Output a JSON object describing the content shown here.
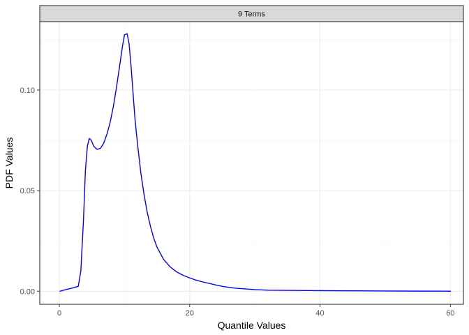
{
  "chart_data": {
    "type": "line",
    "panel_title": "9 Terms",
    "xlabel": "Quantile Values",
    "ylabel": "PDF Values",
    "xlim": [
      -3,
      62
    ],
    "ylim": [
      -0.0065,
      0.134
    ],
    "x_ticks": [
      0,
      20,
      40,
      60
    ],
    "x_tick_labels": [
      "0",
      "20",
      "40",
      "60"
    ],
    "y_ticks": [
      0.0,
      0.05,
      0.1
    ],
    "y_tick_labels": [
      "0.00",
      "0.05",
      "0.10"
    ],
    "grid": true,
    "legend": "none",
    "series": [
      {
        "color": "#0000ff",
        "x": [
          0.1,
          1.0,
          2.0,
          2.9,
          3.3,
          3.7,
          4.0,
          4.3,
          4.6,
          4.9,
          5.3,
          5.8,
          6.3,
          6.8,
          7.3,
          7.8,
          8.3,
          8.8,
          9.3,
          9.7,
          10.0,
          10.4,
          10.7,
          11.0,
          11.3,
          11.6,
          12.0,
          12.5,
          13.0,
          13.5,
          14.0,
          14.5,
          15.0,
          16.0,
          17.0,
          18.0,
          19.0,
          20.0,
          21.0,
          22.0,
          23.0,
          24.0,
          25.0,
          27.0,
          30.0,
          32.0,
          35.0,
          40.0,
          45.0,
          50.0,
          55.0,
          60.0
        ],
        "y": [
          0.0,
          0.0008,
          0.0016,
          0.0024,
          0.01,
          0.035,
          0.06,
          0.072,
          0.076,
          0.075,
          0.072,
          0.0705,
          0.071,
          0.0735,
          0.078,
          0.084,
          0.092,
          0.102,
          0.113,
          0.122,
          0.1275,
          0.128,
          0.123,
          0.112,
          0.099,
          0.086,
          0.073,
          0.059,
          0.048,
          0.039,
          0.032,
          0.0262,
          0.0218,
          0.0158,
          0.0121,
          0.0096,
          0.0079,
          0.0066,
          0.0055,
          0.0046,
          0.0039,
          0.0031,
          0.0024,
          0.0015,
          0.0008,
          0.0005,
          0.0004,
          0.0003,
          0.0002,
          0.0001,
          5e-05,
          0.0
        ]
      }
    ]
  },
  "colors": {
    "panel_border": "#333333",
    "strip_fill": "#d9d9d9",
    "grid_major": "#ebebeb",
    "grid_minor": "#f4f4f4",
    "tick_color": "#333333"
  }
}
